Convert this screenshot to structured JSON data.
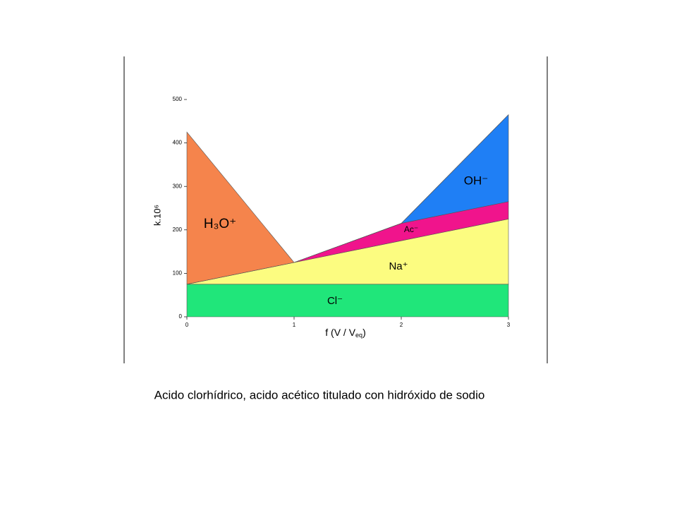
{
  "chart_data": {
    "type": "stacked_area",
    "x": [
      0,
      1,
      2,
      3
    ],
    "series": [
      {
        "name": "Cl⁻",
        "color": "#20e67a",
        "values": [
          75,
          75,
          75,
          75
        ]
      },
      {
        "name": "Na⁺",
        "color": "#fcfc80",
        "values": [
          0,
          50,
          100,
          150
        ]
      },
      {
        "name": "Ac⁻",
        "color": "#f0148c",
        "values": [
          0,
          0,
          40,
          40
        ]
      },
      {
        "name": "OH⁻",
        "color": "#1f7ff5",
        "values": [
          0,
          0,
          0,
          200
        ]
      },
      {
        "name": "H₃O⁺",
        "color": "#f5844c",
        "values": [
          350,
          0,
          0,
          0
        ]
      }
    ],
    "xlim": [
      0,
      3
    ],
    "xticks": [
      0,
      1,
      2,
      3
    ],
    "ylim": [
      0,
      500
    ],
    "yticks": [
      0,
      100,
      200,
      300,
      400,
      500
    ],
    "xlabel": [
      "f (V / V",
      "eq",
      ")"
    ],
    "ylabel": "k.10⁶",
    "caption": "Acido clorhídrico, acido acético  titulado con  hidróxido de sodio"
  }
}
